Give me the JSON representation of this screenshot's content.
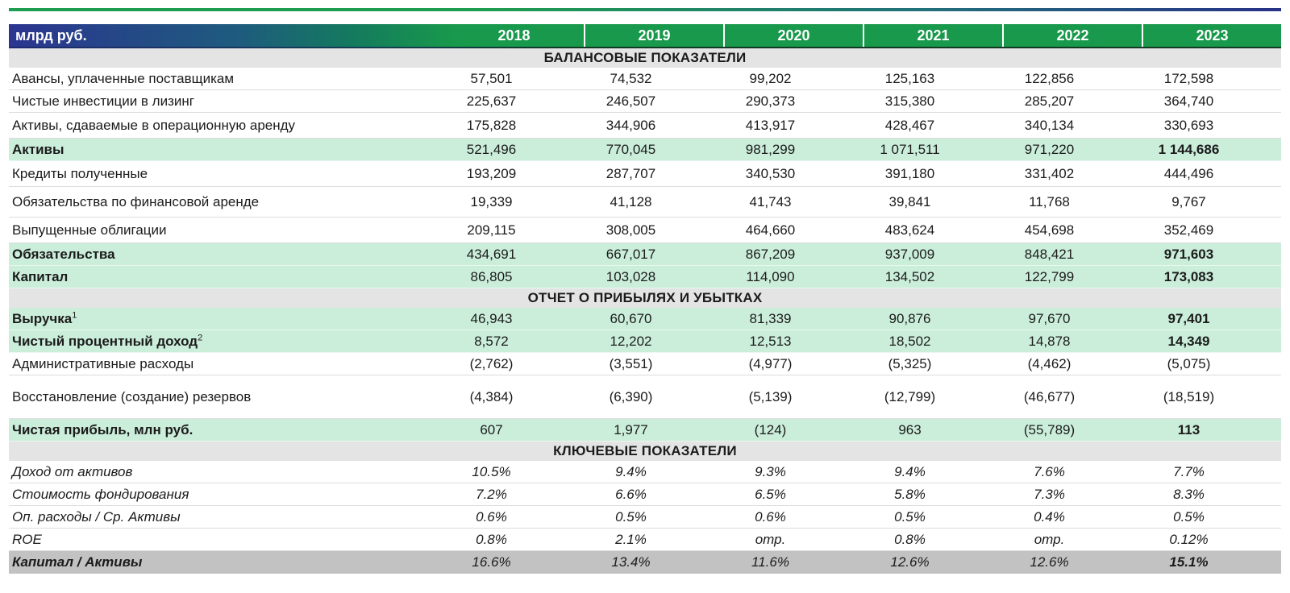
{
  "header": {
    "unit_label": "млрд руб.",
    "years": [
      "2018",
      "2019",
      "2020",
      "2021",
      "2022",
      "2023"
    ]
  },
  "colors": {
    "accent_green": "#18994B",
    "accent_navy": "#2B3590",
    "highlight_green": "#CBEEDB",
    "section_band_gray": "#E4E4E4",
    "summary_row_gray": "#C2C2C2"
  },
  "sections": [
    {
      "title": "БАЛАНСОВЫЕ ПОКАЗАТЕЛИ",
      "rows": [
        {
          "label": "Авансы, уплаченные поставщикам",
          "values": [
            "57,501",
            "74,532",
            "99,202",
            "125,163",
            "122,856",
            "172,598"
          ],
          "variant": "plain",
          "height": "h28"
        },
        {
          "label": "Чистые инвестиции в лизинг",
          "values": [
            "225,637",
            "246,507",
            "290,373",
            "315,380",
            "285,207",
            "364,740"
          ],
          "variant": "plain",
          "height": "h28"
        },
        {
          "label": "Активы, сдаваемые в операционную аренду",
          "values": [
            "175,828",
            "344,906",
            "413,917",
            "428,467",
            "340,134",
            "330,693"
          ],
          "variant": "plain",
          "height": "h32"
        },
        {
          "label": "Активы",
          "values": [
            "521,496",
            "770,045",
            "981,299",
            "1 071,511",
            "971,220",
            "1 144,686"
          ],
          "variant": "highlight",
          "bold_label": true,
          "bold_last": true,
          "height": "h28"
        },
        {
          "label": "Кредиты полученные",
          "values": [
            "193,209",
            "287,707",
            "340,530",
            "391,180",
            "331,402",
            "444,496"
          ],
          "variant": "plain",
          "height": "h32"
        },
        {
          "label": "Обязательства по финансовой аренде",
          "values": [
            "19,339",
            "41,128",
            "41,743",
            "39,841",
            "11,768",
            "9,767"
          ],
          "variant": "plain",
          "height": "h38"
        },
        {
          "label": "Выпущенные облигации",
          "values": [
            "209,115",
            "308,005",
            "464,660",
            "483,624",
            "454,698",
            "352,469"
          ],
          "variant": "plain",
          "height": "h32"
        },
        {
          "label": "Обязательства",
          "values": [
            "434,691",
            "667,017",
            "867,209",
            "937,009",
            "848,421",
            "971,603"
          ],
          "variant": "highlight",
          "bold_label": true,
          "bold_last": true,
          "height": "h28"
        },
        {
          "label": "Капитал",
          "values": [
            "86,805",
            "103,028",
            "114,090",
            "134,502",
            "122,799",
            "173,083"
          ],
          "variant": "highlight",
          "bold_label": true,
          "bold_last": true,
          "height": "h28"
        }
      ]
    },
    {
      "title": "ОТЧЕТ О ПРИБЫЛЯХ И УБЫТКАХ",
      "rows": [
        {
          "label": "Выручка",
          "sup": "1",
          "values": [
            "46,943",
            "60,670",
            "81,339",
            "90,876",
            "97,670",
            "97,401"
          ],
          "variant": "highlight",
          "bold_label": true,
          "bold_last": true,
          "height": "h28"
        },
        {
          "label": "Чистый процентный доход",
          "sup": "2",
          "values": [
            "8,572",
            "12,202",
            "12,513",
            "18,502",
            "14,878",
            "14,349"
          ],
          "variant": "highlight",
          "bold_label": true,
          "bold_last": true,
          "height": "h28"
        },
        {
          "label": "Административные расходы",
          "values": [
            "(2,762)",
            "(3,551)",
            "(4,977)",
            "(5,325)",
            "(4,462)",
            "(5,075)"
          ],
          "variant": "plain",
          "height": "h28"
        },
        {
          "label": "Восстановление (создание) резервов",
          "values": [
            "(4,384)",
            "(6,390)",
            "(5,139)",
            "(12,799)",
            "(46,677)",
            "(18,519)"
          ],
          "variant": "plain",
          "height": "h54"
        },
        {
          "label": "Чистая прибыль, млн руб.",
          "values": [
            "607",
            "1,977",
            "(124)",
            "963",
            "(55,789)",
            "113"
          ],
          "variant": "highlight",
          "bold_label": true,
          "bold_last": true,
          "height": "h28"
        }
      ]
    },
    {
      "title": "КЛЮЧЕВЫЕ ПОКАЗАТЕЛИ",
      "rows": [
        {
          "label": "Доход от активов",
          "values": [
            "10.5%",
            "9.4%",
            "9.3%",
            "9.4%",
            "7.6%",
            "7.7%"
          ],
          "variant": "plain",
          "italic": true,
          "height": "h28"
        },
        {
          "label": "Стоимость фондирования",
          "values": [
            "7.2%",
            "6.6%",
            "6.5%",
            "5.8%",
            "7.3%",
            "8.3%"
          ],
          "variant": "plain",
          "italic": true,
          "height": "h28"
        },
        {
          "label": "Оп. расходы / Ср. Активы",
          "values": [
            "0.6%",
            "0.5%",
            "0.6%",
            "0.5%",
            "0.4%",
            "0.5%"
          ],
          "variant": "plain",
          "italic": true,
          "height": "h28"
        },
        {
          "label": "ROE",
          "values": [
            "0.8%",
            "2.1%",
            "отр.",
            "0.8%",
            "отр.",
            "0.12%"
          ],
          "variant": "plain",
          "italic": true,
          "height": "h28"
        },
        {
          "label": "Капитал / Активы",
          "values": [
            "16.6%",
            "13.4%",
            "11.6%",
            "12.6%",
            "12.6%",
            "15.1%"
          ],
          "variant": "grayrow",
          "italic": true,
          "bold_label": true,
          "bold_last": true,
          "height": "h28"
        }
      ]
    }
  ]
}
